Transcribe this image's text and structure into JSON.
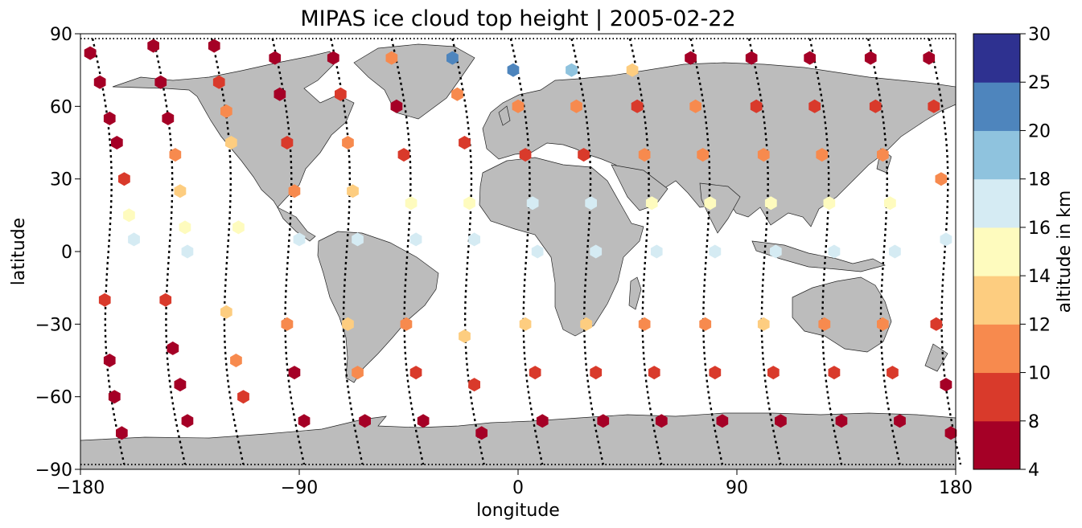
{
  "chart_data": {
    "type": "scatter",
    "title": "MIPAS ice cloud top height | 2005-02-22",
    "xlabel": "longitude",
    "ylabel": "latitude",
    "xlim": [
      -180,
      180
    ],
    "ylim": [
      -90,
      90
    ],
    "xticks": [
      -180,
      -90,
      0,
      90,
      180
    ],
    "yticks": [
      90,
      60,
      30,
      0,
      -30,
      -60,
      -90
    ],
    "xtick_labels": [
      "−180",
      "−90",
      "0",
      "90",
      "180"
    ],
    "ytick_labels": [
      "90",
      "60",
      "30",
      "0",
      "−30",
      "−60",
      "−90"
    ],
    "background_map": "world coastlines, land shaded grey",
    "track_style": "black dotted orbit tracks",
    "colorbar": {
      "label": "altitude in km",
      "bounds": [
        4,
        8,
        10,
        12,
        14,
        16,
        18,
        20,
        25,
        30
      ],
      "tick_labels": [
        "4",
        "8",
        "10",
        "12",
        "14",
        "16",
        "18",
        "20",
        "25",
        "30"
      ],
      "colors": [
        "#a50026",
        "#d73027",
        "#f46d43",
        "#fdae61",
        "#fee090",
        "#e0f3f8",
        "#abd9e9",
        "#74add1",
        "#4575b4",
        "#313695"
      ],
      "display_colors": [
        "#a50026",
        "#d93a2b",
        "#f78a4e",
        "#fdcd80",
        "#fefbbe",
        "#d5ebf3",
        "#8fc3de",
        "#4e85bd",
        "#2e3190"
      ]
    },
    "orbit_tracks": [
      {
        "x_north": -175,
        "x_south": -162
      },
      {
        "x_north": -150,
        "x_south": -137
      },
      {
        "x_north": -126,
        "x_south": -113
      },
      {
        "x_north": -101,
        "x_south": -88
      },
      {
        "x_north": -77,
        "x_south": -64
      },
      {
        "x_north": -52,
        "x_south": -39
      },
      {
        "x_north": -27,
        "x_south": -14
      },
      {
        "x_north": -3,
        "x_south": 10
      },
      {
        "x_north": 22,
        "x_south": 35
      },
      {
        "x_north": 46,
        "x_south": 59
      },
      {
        "x_north": 71,
        "x_south": 84
      },
      {
        "x_north": 95,
        "x_south": 108
      },
      {
        "x_north": 120,
        "x_south": 133
      },
      {
        "x_north": 144,
        "x_south": 157
      },
      {
        "x_north": 169,
        "x_south": 182
      }
    ],
    "points": [
      {
        "lon": -176,
        "lat": 82,
        "alt": 6
      },
      {
        "lon": -172,
        "lat": 70,
        "alt": 6
      },
      {
        "lon": -168,
        "lat": 55,
        "alt": 6
      },
      {
        "lon": -165,
        "lat": 45,
        "alt": 6
      },
      {
        "lon": -162,
        "lat": 30,
        "alt": 9
      },
      {
        "lon": -160,
        "lat": 15,
        "alt": 15
      },
      {
        "lon": -158,
        "lat": 5,
        "alt": 17
      },
      {
        "lon": -170,
        "lat": -20,
        "alt": 9
      },
      {
        "lon": -168,
        "lat": -45,
        "alt": 6
      },
      {
        "lon": -166,
        "lat": -60,
        "alt": 6
      },
      {
        "lon": -163,
        "lat": -75,
        "alt": 6
      },
      {
        "lon": -150,
        "lat": 85,
        "alt": 6
      },
      {
        "lon": -147,
        "lat": 70,
        "alt": 6
      },
      {
        "lon": -144,
        "lat": 55,
        "alt": 6
      },
      {
        "lon": -141,
        "lat": 40,
        "alt": 11
      },
      {
        "lon": -139,
        "lat": 25,
        "alt": 13
      },
      {
        "lon": -137,
        "lat": 10,
        "alt": 15
      },
      {
        "lon": -136,
        "lat": 0,
        "alt": 17
      },
      {
        "lon": -145,
        "lat": -20,
        "alt": 9
      },
      {
        "lon": -142,
        "lat": -40,
        "alt": 6
      },
      {
        "lon": -139,
        "lat": -55,
        "alt": 6
      },
      {
        "lon": -136,
        "lat": -70,
        "alt": 6
      },
      {
        "lon": -125,
        "lat": 85,
        "alt": 6
      },
      {
        "lon": -123,
        "lat": 70,
        "alt": 9
      },
      {
        "lon": -120,
        "lat": 58,
        "alt": 11
      },
      {
        "lon": -118,
        "lat": 45,
        "alt": 13
      },
      {
        "lon": -115,
        "lat": 10,
        "alt": 15
      },
      {
        "lon": -120,
        "lat": -25,
        "alt": 13
      },
      {
        "lon": -116,
        "lat": -45,
        "alt": 11
      },
      {
        "lon": -113,
        "lat": -60,
        "alt": 9
      },
      {
        "lon": -100,
        "lat": 80,
        "alt": 6
      },
      {
        "lon": -98,
        "lat": 65,
        "alt": 6
      },
      {
        "lon": -95,
        "lat": 45,
        "alt": 9
      },
      {
        "lon": -92,
        "lat": 25,
        "alt": 11
      },
      {
        "lon": -90,
        "lat": 5,
        "alt": 17
      },
      {
        "lon": -95,
        "lat": -30,
        "alt": 11
      },
      {
        "lon": -92,
        "lat": -50,
        "alt": 6
      },
      {
        "lon": -88,
        "lat": -70,
        "alt": 6
      },
      {
        "lon": -76,
        "lat": 80,
        "alt": 6
      },
      {
        "lon": -73,
        "lat": 65,
        "alt": 9
      },
      {
        "lon": -70,
        "lat": 45,
        "alt": 11
      },
      {
        "lon": -68,
        "lat": 25,
        "alt": 13
      },
      {
        "lon": -66,
        "lat": 5,
        "alt": 17
      },
      {
        "lon": -70,
        "lat": -30,
        "alt": 13
      },
      {
        "lon": -66,
        "lat": -50,
        "alt": 11
      },
      {
        "lon": -63,
        "lat": -70,
        "alt": 6
      },
      {
        "lon": -52,
        "lat": 80,
        "alt": 11
      },
      {
        "lon": -50,
        "lat": 60,
        "alt": 6
      },
      {
        "lon": -47,
        "lat": 40,
        "alt": 9
      },
      {
        "lon": -44,
        "lat": 20,
        "alt": 15
      },
      {
        "lon": -42,
        "lat": 5,
        "alt": 17
      },
      {
        "lon": -46,
        "lat": -30,
        "alt": 11
      },
      {
        "lon": -42,
        "lat": -50,
        "alt": 9
      },
      {
        "lon": -39,
        "lat": -70,
        "alt": 6
      },
      {
        "lon": -27,
        "lat": 80,
        "alt": 22
      },
      {
        "lon": -25,
        "lat": 65,
        "alt": 11
      },
      {
        "lon": -22,
        "lat": 45,
        "alt": 9
      },
      {
        "lon": -20,
        "lat": 20,
        "alt": 15
      },
      {
        "lon": -18,
        "lat": 5,
        "alt": 17
      },
      {
        "lon": -22,
        "lat": -35,
        "alt": 13
      },
      {
        "lon": -18,
        "lat": -55,
        "alt": 9
      },
      {
        "lon": -15,
        "lat": -75,
        "alt": 6
      },
      {
        "lon": -2,
        "lat": 75,
        "alt": 22
      },
      {
        "lon": 0,
        "lat": 60,
        "alt": 11
      },
      {
        "lon": 3,
        "lat": 40,
        "alt": 9
      },
      {
        "lon": 6,
        "lat": 20,
        "alt": 17
      },
      {
        "lon": 8,
        "lat": 0,
        "alt": 17
      },
      {
        "lon": 3,
        "lat": -30,
        "alt": 13
      },
      {
        "lon": 7,
        "lat": -50,
        "alt": 9
      },
      {
        "lon": 10,
        "lat": -70,
        "alt": 6
      },
      {
        "lon": 22,
        "lat": 75,
        "alt": 19
      },
      {
        "lon": 24,
        "lat": 60,
        "alt": 11
      },
      {
        "lon": 27,
        "lat": 40,
        "alt": 9
      },
      {
        "lon": 30,
        "lat": 20,
        "alt": 17
      },
      {
        "lon": 32,
        "lat": 0,
        "alt": 17
      },
      {
        "lon": 28,
        "lat": -30,
        "alt": 13
      },
      {
        "lon": 32,
        "lat": -50,
        "alt": 9
      },
      {
        "lon": 35,
        "lat": -70,
        "alt": 6
      },
      {
        "lon": 47,
        "lat": 75,
        "alt": 13
      },
      {
        "lon": 49,
        "lat": 60,
        "alt": 9
      },
      {
        "lon": 52,
        "lat": 40,
        "alt": 11
      },
      {
        "lon": 55,
        "lat": 20,
        "alt": 15
      },
      {
        "lon": 57,
        "lat": 0,
        "alt": 17
      },
      {
        "lon": 52,
        "lat": -30,
        "alt": 11
      },
      {
        "lon": 56,
        "lat": -50,
        "alt": 9
      },
      {
        "lon": 59,
        "lat": -70,
        "alt": 6
      },
      {
        "lon": 71,
        "lat": 80,
        "alt": 6
      },
      {
        "lon": 73,
        "lat": 60,
        "alt": 11
      },
      {
        "lon": 76,
        "lat": 40,
        "alt": 11
      },
      {
        "lon": 79,
        "lat": 20,
        "alt": 15
      },
      {
        "lon": 81,
        "lat": 0,
        "alt": 17
      },
      {
        "lon": 77,
        "lat": -30,
        "alt": 11
      },
      {
        "lon": 81,
        "lat": -50,
        "alt": 9
      },
      {
        "lon": 84,
        "lat": -70,
        "alt": 6
      },
      {
        "lon": 96,
        "lat": 80,
        "alt": 6
      },
      {
        "lon": 98,
        "lat": 60,
        "alt": 9
      },
      {
        "lon": 101,
        "lat": 40,
        "alt": 11
      },
      {
        "lon": 104,
        "lat": 20,
        "alt": 15
      },
      {
        "lon": 106,
        "lat": 0,
        "alt": 17
      },
      {
        "lon": 101,
        "lat": -30,
        "alt": 13
      },
      {
        "lon": 105,
        "lat": -50,
        "alt": 9
      },
      {
        "lon": 108,
        "lat": -70,
        "alt": 6
      },
      {
        "lon": 120,
        "lat": 80,
        "alt": 6
      },
      {
        "lon": 122,
        "lat": 60,
        "alt": 9
      },
      {
        "lon": 125,
        "lat": 40,
        "alt": 11
      },
      {
        "lon": 128,
        "lat": 20,
        "alt": 15
      },
      {
        "lon": 130,
        "lat": 0,
        "alt": 17
      },
      {
        "lon": 126,
        "lat": -30,
        "alt": 11
      },
      {
        "lon": 130,
        "lat": -50,
        "alt": 9
      },
      {
        "lon": 133,
        "lat": -70,
        "alt": 6
      },
      {
        "lon": 145,
        "lat": 80,
        "alt": 6
      },
      {
        "lon": 147,
        "lat": 60,
        "alt": 9
      },
      {
        "lon": 150,
        "lat": 40,
        "alt": 11
      },
      {
        "lon": 153,
        "lat": 20,
        "alt": 15
      },
      {
        "lon": 155,
        "lat": 0,
        "alt": 17
      },
      {
        "lon": 150,
        "lat": -30,
        "alt": 11
      },
      {
        "lon": 154,
        "lat": -50,
        "alt": 9
      },
      {
        "lon": 157,
        "lat": -70,
        "alt": 6
      },
      {
        "lon": 169,
        "lat": 80,
        "alt": 6
      },
      {
        "lon": 171,
        "lat": 60,
        "alt": 9
      },
      {
        "lon": 174,
        "lat": 30,
        "alt": 11
      },
      {
        "lon": 176,
        "lat": 5,
        "alt": 17
      },
      {
        "lon": 172,
        "lat": -30,
        "alt": 9
      },
      {
        "lon": 176,
        "lat": -55,
        "alt": 6
      },
      {
        "lon": 178,
        "lat": -75,
        "alt": 6
      }
    ]
  }
}
